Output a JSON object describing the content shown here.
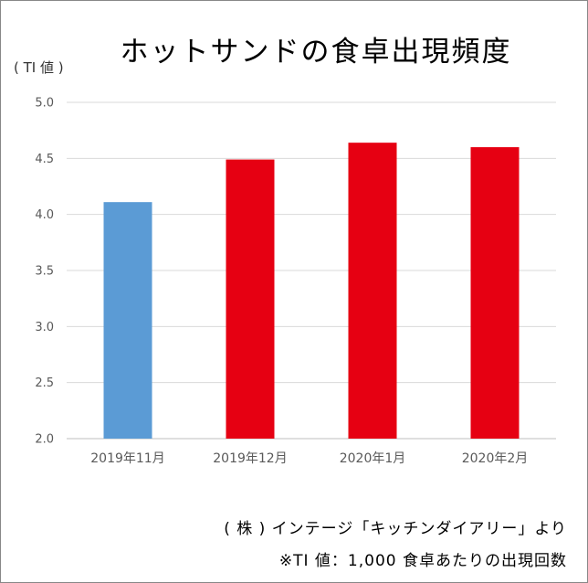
{
  "chart_data": {
    "type": "bar",
    "title": "ホットサンドの食卓出現頻度",
    "ylabel": "( TI 値 )",
    "xlabel": "",
    "categories": [
      "2019年11月",
      "2019年12月",
      "2020年1月",
      "2020年2月"
    ],
    "values": [
      4.11,
      4.49,
      4.64,
      4.6
    ],
    "ylim": [
      2.0,
      5.0
    ],
    "yticks": [
      2.0,
      2.5,
      3.0,
      3.5,
      4.0,
      4.5,
      5.0
    ],
    "ytick_labels": [
      "2.0",
      "2.5",
      "3.0",
      "3.5",
      "4.0",
      "4.5",
      "5.0"
    ],
    "grid": true,
    "bar_colors": [
      "#5B9BD5",
      "#E60012",
      "#E60012",
      "#E60012"
    ]
  },
  "footer": {
    "source": "( 株 ) インテージ「キッチンダイアリー」より",
    "note": "※TI 値：1,000 食卓あたりの出現回数"
  }
}
